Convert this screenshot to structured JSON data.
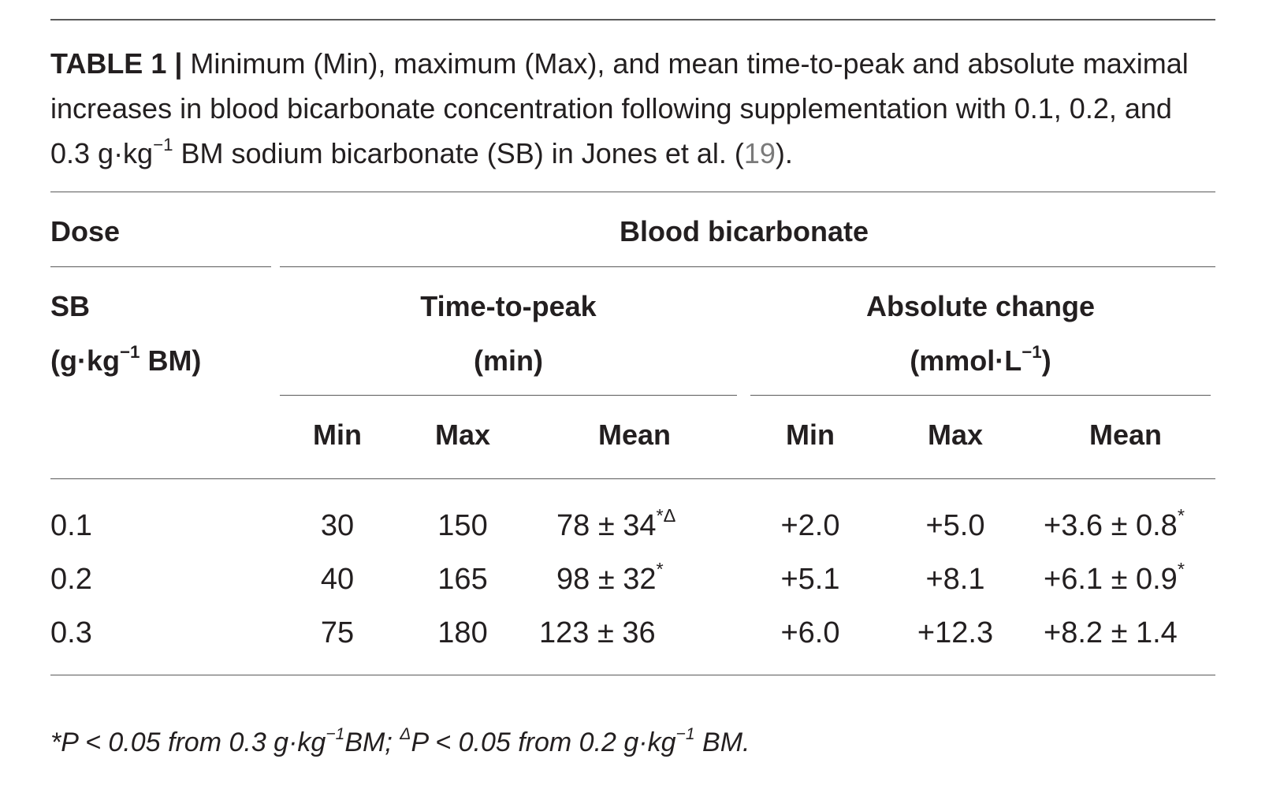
{
  "caption": {
    "label": "TABLE 1 |",
    "text_before_ref": " Minimum (Min), maximum (Max), and mean time-to-peak and absolute maximal increases in blood bicarbonate concentration following supplementation with 0.1, 0.2, and 0.3 g·kg",
    "text_sup": "−1",
    "text_after_sup": " BM sodium bicarbonate (SB) in Jones et al. (",
    "ref": "19",
    "text_end": ")."
  },
  "header": {
    "dose": "Dose",
    "blood_bicarbonate": "Blood bicarbonate",
    "sb_line1": "SB",
    "sb_line2_pre": "(g·kg",
    "sb_line2_sup": "−1",
    "sb_line2_post": " BM)",
    "ttp_line1": "Time-to-peak",
    "ttp_line2": "(min)",
    "abs_line1": "Absolute change",
    "abs_line2_pre": "(mmol·L",
    "abs_line2_sup": "−1",
    "abs_line2_post": ")",
    "sub": [
      "Min",
      "Max",
      "Mean",
      "Min",
      "Max",
      "Mean"
    ]
  },
  "rows": [
    {
      "dose": "0.1",
      "ttp_min": "30",
      "ttp_max": "150",
      "ttp_mean": "78 ± 34",
      "ttp_mean_sup": "*Δ",
      "abs_min": "+2.0",
      "abs_max": "+5.0",
      "abs_mean": "+3.6 ± 0.8",
      "abs_mean_sup": "*"
    },
    {
      "dose": "0.2",
      "ttp_min": "40",
      "ttp_max": "165",
      "ttp_mean": "98 ± 32",
      "ttp_mean_sup": "*",
      "abs_min": "+5.1",
      "abs_max": "+8.1",
      "abs_mean": "+6.1 ± 0.9",
      "abs_mean_sup": "*"
    },
    {
      "dose": "0.3",
      "ttp_min": "75",
      "ttp_max": "180",
      "ttp_mean": "123 ± 36",
      "ttp_mean_sup": "",
      "abs_min": "+6.0",
      "abs_max": "+12.3",
      "abs_mean": "+8.2 ± 1.4",
      "abs_mean_sup": ""
    }
  ],
  "footnote": {
    "part1": "*P < 0.05 from 0.3 g·kg",
    "sup1": "−1",
    "part2": "BM; ",
    "sup2": "Δ",
    "part3": "P < 0.05 from 0.2 g·kg",
    "sup3": "−1",
    "part4": " BM."
  }
}
